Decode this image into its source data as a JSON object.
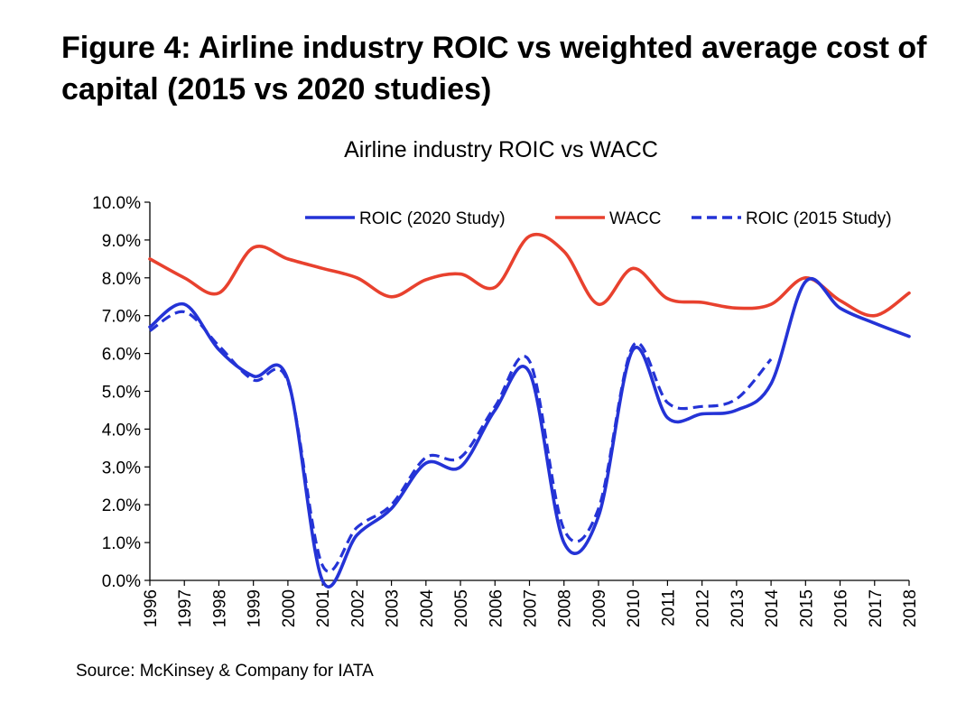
{
  "figure": {
    "title": "Figure 4: Airline industry ROIC vs weighted average cost of capital (2015 vs 2020 studies)",
    "source": "Source: McKinsey & Company for IATA"
  },
  "chart_data": {
    "type": "line",
    "title": "Airline industry ROIC vs WACC",
    "xlabel": "",
    "ylabel": "",
    "x": [
      "1996",
      "1997",
      "1998",
      "1999",
      "2000",
      "2001",
      "2002",
      "2003",
      "2004",
      "2005",
      "2006",
      "2007",
      "2008",
      "2009",
      "2010",
      "2011",
      "2012",
      "2013",
      "2014",
      "2015",
      "2016",
      "2017",
      "2018"
    ],
    "ylim": [
      0,
      10
    ],
    "yticks": [
      "0.0%",
      "1.0%",
      "2.0%",
      "3.0%",
      "4.0%",
      "5.0%",
      "6.0%",
      "7.0%",
      "8.0%",
      "9.0%",
      "10.0%"
    ],
    "grid": false,
    "legend_position": "top-right",
    "series": [
      {
        "name": "ROIC (2020 Study)",
        "color": "#2433d6",
        "style": "solid",
        "values": [
          6.7,
          7.3,
          6.1,
          5.4,
          5.3,
          0.0,
          1.2,
          1.9,
          3.1,
          3.0,
          4.5,
          5.5,
          1.0,
          1.7,
          6.1,
          4.3,
          4.4,
          4.5,
          5.2,
          7.9,
          7.2,
          6.8,
          6.45
        ]
      },
      {
        "name": "WACC",
        "color": "#e8412e",
        "style": "solid",
        "values": [
          8.5,
          8.0,
          7.6,
          8.8,
          8.5,
          8.25,
          8.0,
          7.5,
          7.95,
          8.1,
          7.75,
          9.1,
          8.7,
          7.3,
          8.25,
          7.45,
          7.35,
          7.2,
          7.3,
          8.0,
          7.4,
          7.0,
          7.6
        ]
      },
      {
        "name": "ROIC (2015 Study)",
        "color": "#2433d6",
        "style": "dashed",
        "values": [
          6.6,
          7.1,
          6.2,
          5.3,
          5.25,
          0.4,
          1.4,
          2.0,
          3.25,
          3.25,
          4.6,
          5.8,
          1.35,
          1.9,
          6.2,
          4.7,
          4.6,
          4.8,
          5.85,
          null,
          null,
          null,
          null
        ]
      }
    ]
  }
}
